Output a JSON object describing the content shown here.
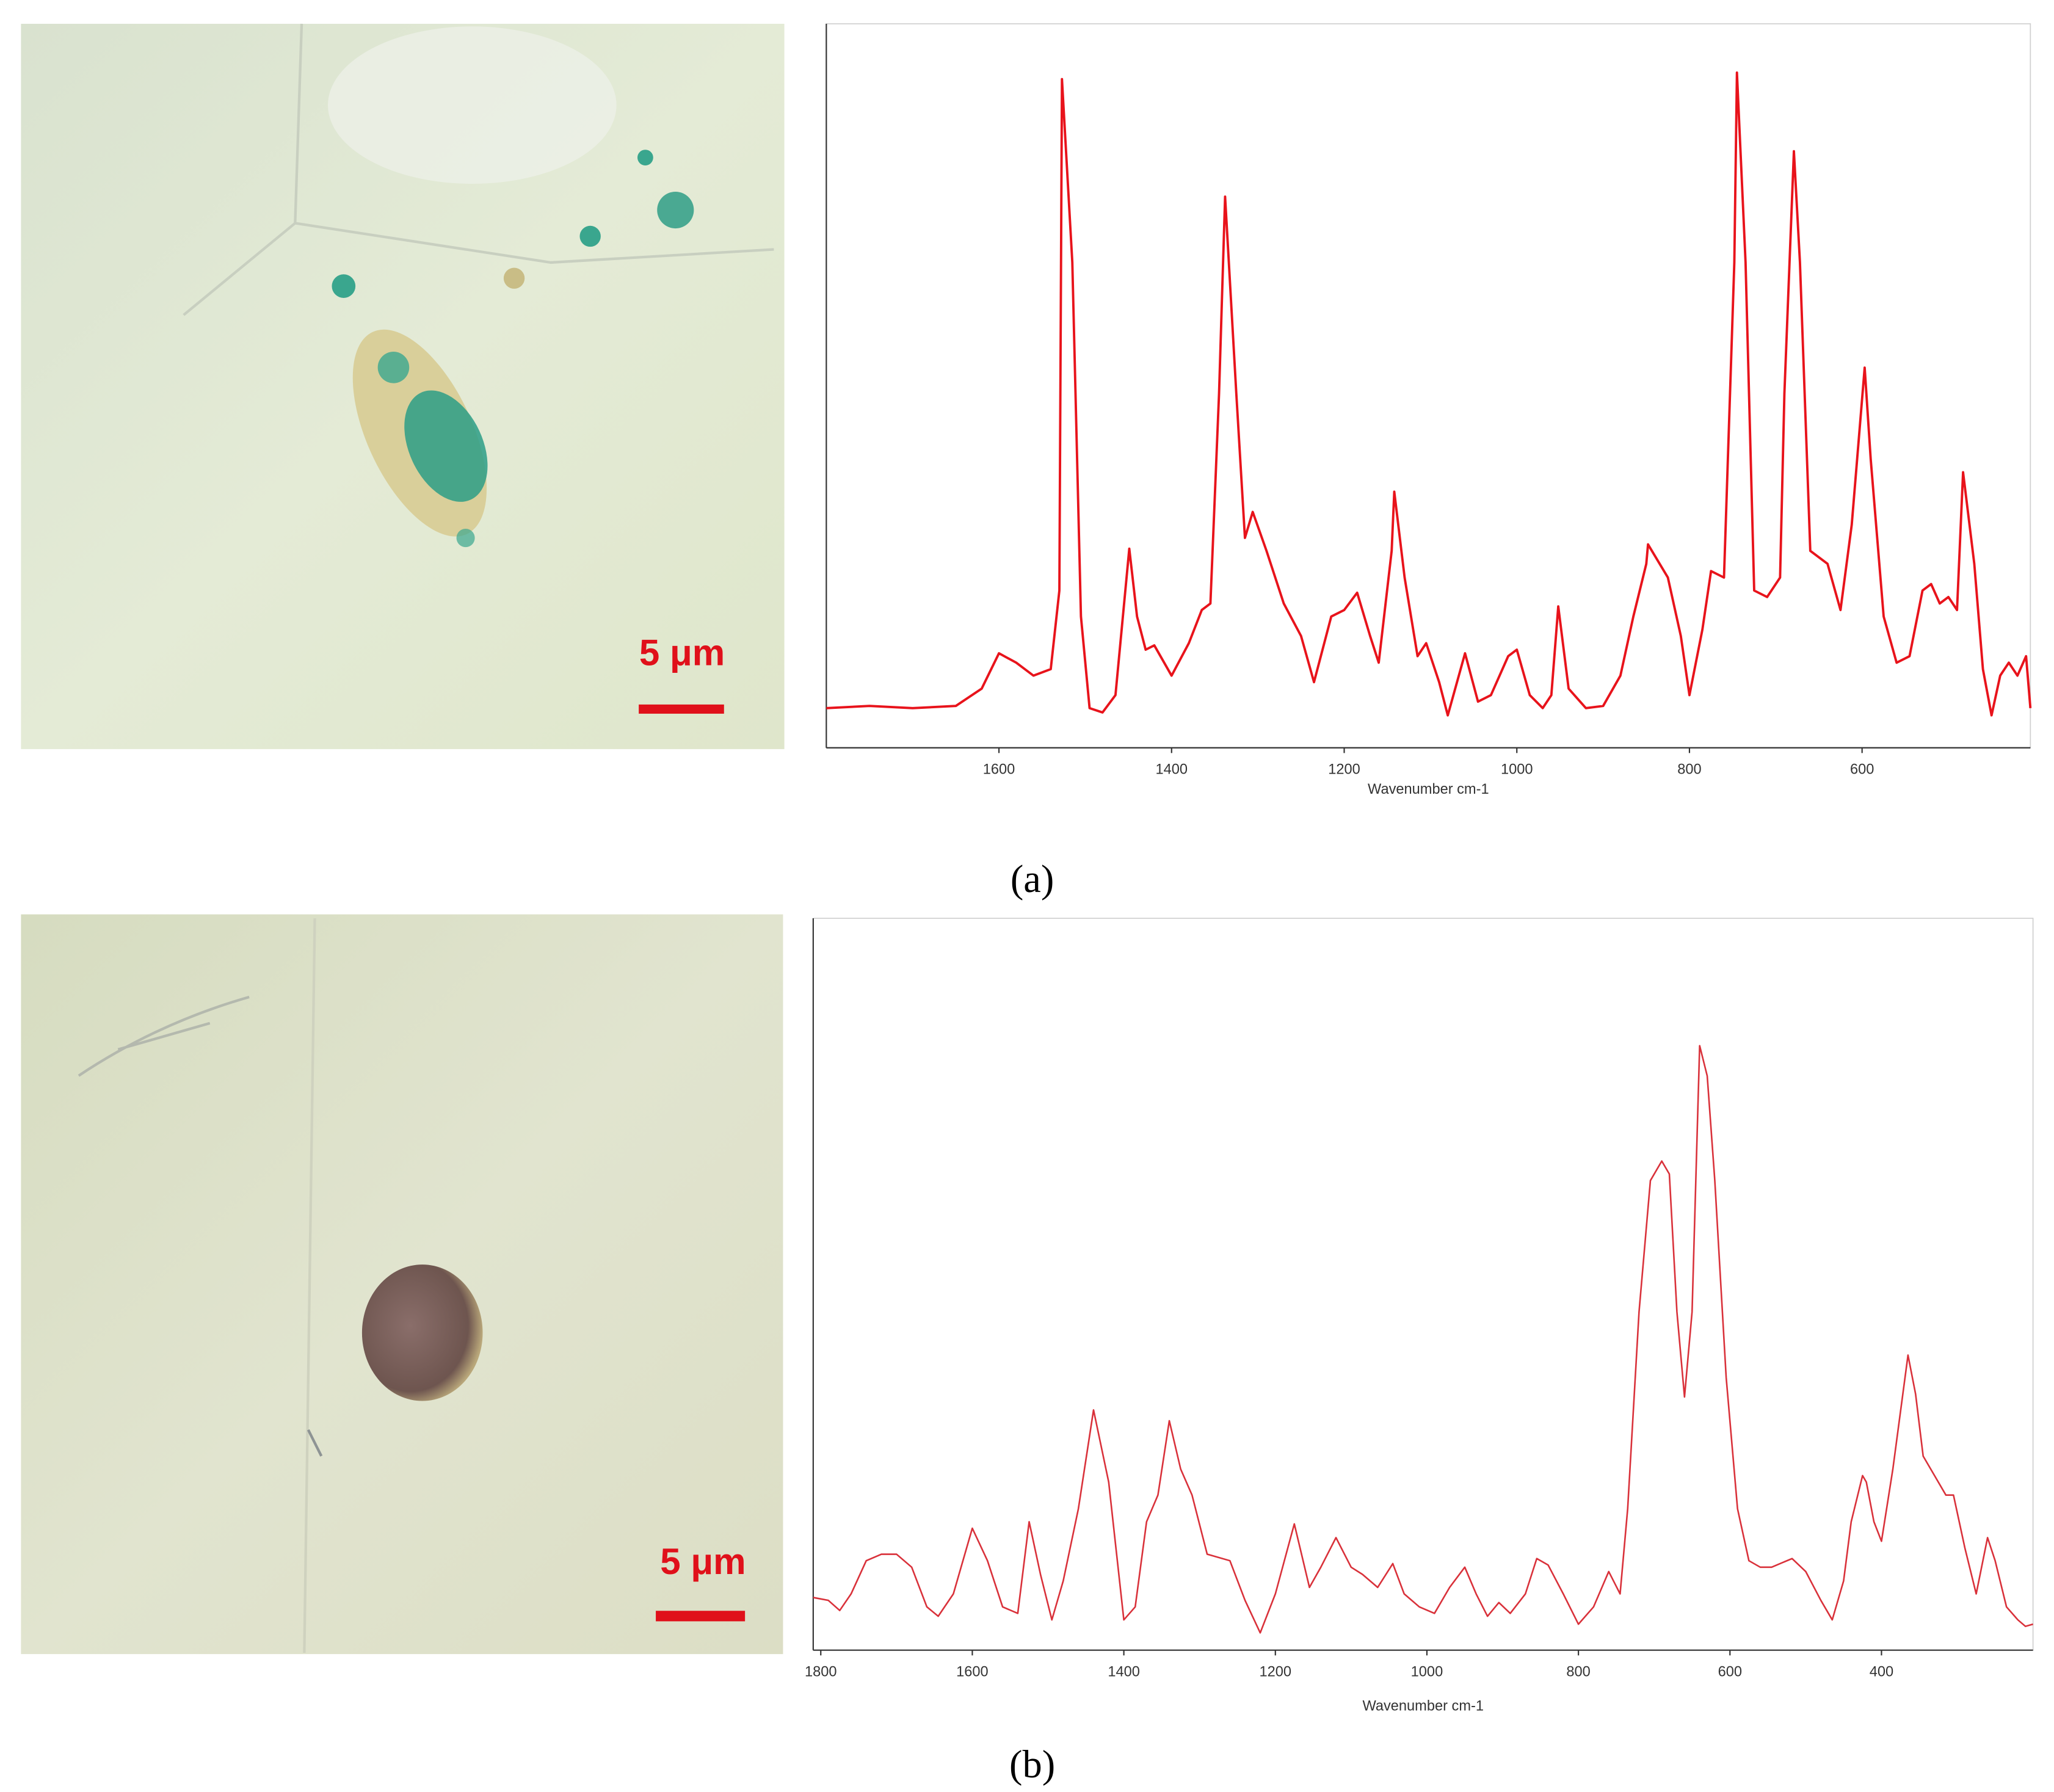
{
  "panels": [
    {
      "label": "(a)",
      "scale_bar": "5 μm"
    },
    {
      "label": "(b)",
      "scale_bar": "5 μm"
    }
  ],
  "chart_data": [
    {
      "type": "line",
      "xlabel": "Wavenumber cm-1",
      "xlim": [
        1800,
        405
      ],
      "xticks": [
        1600,
        1400,
        1200,
        1000,
        800,
        600
      ],
      "ylim": [
        0,
        100
      ],
      "x": [
        1800,
        1750,
        1700,
        1650,
        1620,
        1600,
        1580,
        1560,
        1540,
        1530,
        1527,
        1515,
        1505,
        1495,
        1480,
        1465,
        1449,
        1440,
        1430,
        1420,
        1400,
        1380,
        1365,
        1355,
        1345,
        1338,
        1325,
        1315,
        1306,
        1290,
        1270,
        1250,
        1235,
        1215,
        1200,
        1185,
        1170,
        1160,
        1145,
        1142,
        1130,
        1115,
        1105,
        1090,
        1080,
        1060,
        1045,
        1030,
        1010,
        1000,
        985,
        970,
        960,
        952,
        940,
        920,
        900,
        880,
        865,
        850,
        848,
        825,
        810,
        800,
        785,
        775,
        760,
        748,
        745,
        735,
        725,
        710,
        695,
        690,
        679,
        672,
        660,
        650,
        640,
        625,
        612,
        597,
        590,
        575,
        560,
        545,
        530,
        520,
        510,
        500,
        490,
        483,
        470,
        460,
        450,
        440,
        430,
        420,
        410,
        405
      ],
      "series": [
        {
          "color": "#e8131b",
          "values": [
            5.5,
            5.8,
            5.5,
            5.8,
            8.2,
            13.1,
            11.8,
            10,
            10.9,
            21.8,
            92.7,
            67.3,
            18.2,
            5.5,
            4.9,
            7.3,
            27.6,
            18.2,
            13.6,
            14.2,
            10,
            14.5,
            19.1,
            20,
            49.1,
            76.4,
            49.1,
            29.1,
            32.7,
            27.3,
            20,
            15.5,
            9.1,
            18.2,
            19.1,
            21.5,
            15.5,
            11.8,
            27.3,
            35.5,
            23.6,
            12.7,
            14.5,
            9.1,
            4.5,
            13.1,
            6.4,
            7.3,
            12.7,
            13.6,
            7.3,
            5.5,
            7.3,
            19.6,
            8.2,
            5.5,
            5.8,
            10,
            18.2,
            25.5,
            28.2,
            23.6,
            15.5,
            7.3,
            16.4,
            24.5,
            23.6,
            67.3,
            93.6,
            67.3,
            21.8,
            20.9,
            23.6,
            49.1,
            82.7,
            67.3,
            27.3,
            26.4,
            25.5,
            19.1,
            30.9,
            52.7,
            40,
            18.2,
            11.8,
            12.7,
            21.8,
            22.7,
            20,
            20.9,
            19.1,
            38.2,
            25.5,
            10.9,
            4.5,
            10,
            11.8,
            10,
            12.7,
            5.5
          ]
        }
      ]
    },
    {
      "type": "line",
      "xlabel": "Wavenumber cm-1",
      "xlim": [
        1810,
        200
      ],
      "xticks": [
        1800,
        1600,
        1400,
        1200,
        1000,
        800,
        600,
        400
      ],
      "ylim": [
        0,
        100
      ],
      "x": [
        1810,
        1790,
        1775,
        1760,
        1740,
        1720,
        1700,
        1680,
        1660,
        1645,
        1625,
        1600,
        1580,
        1560,
        1540,
        1525,
        1510,
        1495,
        1480,
        1460,
        1440,
        1420,
        1400,
        1385,
        1370,
        1355,
        1340,
        1325,
        1310,
        1290,
        1260,
        1240,
        1220,
        1200,
        1175,
        1155,
        1140,
        1120,
        1100,
        1085,
        1065,
        1045,
        1030,
        1010,
        990,
        970,
        950,
        935,
        920,
        905,
        890,
        870,
        855,
        840,
        820,
        800,
        780,
        760,
        745,
        735,
        720,
        705,
        690,
        680,
        670,
        660,
        650,
        640,
        630,
        620,
        605,
        590,
        575,
        560,
        545,
        518,
        500,
        480,
        465,
        450,
        440,
        425,
        420,
        410,
        400,
        385,
        365,
        355,
        345,
        330,
        315,
        305,
        290,
        275,
        260,
        250,
        235,
        220,
        210,
        200
      ],
      "series": [
        {
          "color": "#d9313a",
          "values": [
            7.3,
            6.9,
            5.5,
            7.8,
            12.4,
            13.3,
            13.3,
            11.5,
            6,
            4.7,
            7.8,
            16.9,
            12.4,
            6,
            5.1,
            17.8,
            10.5,
            4.2,
            9.6,
            19.6,
            33.3,
            23.3,
            4.2,
            6,
            17.8,
            21.5,
            31.8,
            25.1,
            21.5,
            13.3,
            12.4,
            6.9,
            2.4,
            7.8,
            17.5,
            8.7,
            11.5,
            15.6,
            11.5,
            10.5,
            8.7,
            12,
            7.8,
            6,
            5.1,
            8.7,
            11.5,
            7.8,
            4.7,
            6.6,
            5.1,
            7.8,
            12.7,
            11.8,
            7.8,
            3.6,
            6,
            10.9,
            7.8,
            19.6,
            46.9,
            65.1,
            67.8,
            66,
            46.9,
            35.1,
            46.9,
            83.8,
            79.6,
            65.1,
            37.8,
            19.6,
            12.4,
            11.5,
            11.5,
            12.7,
            10.9,
            6.9,
            4.2,
            9.6,
            17.8,
            24.2,
            23.3,
            17.8,
            15.1,
            25.1,
            40.9,
            35.5,
            26.9,
            24.2,
            21.5,
            21.5,
            14.2,
            7.8,
            15.6,
            12.4,
            6,
            4.2,
            3.3,
            3.6
          ]
        }
      ]
    }
  ]
}
